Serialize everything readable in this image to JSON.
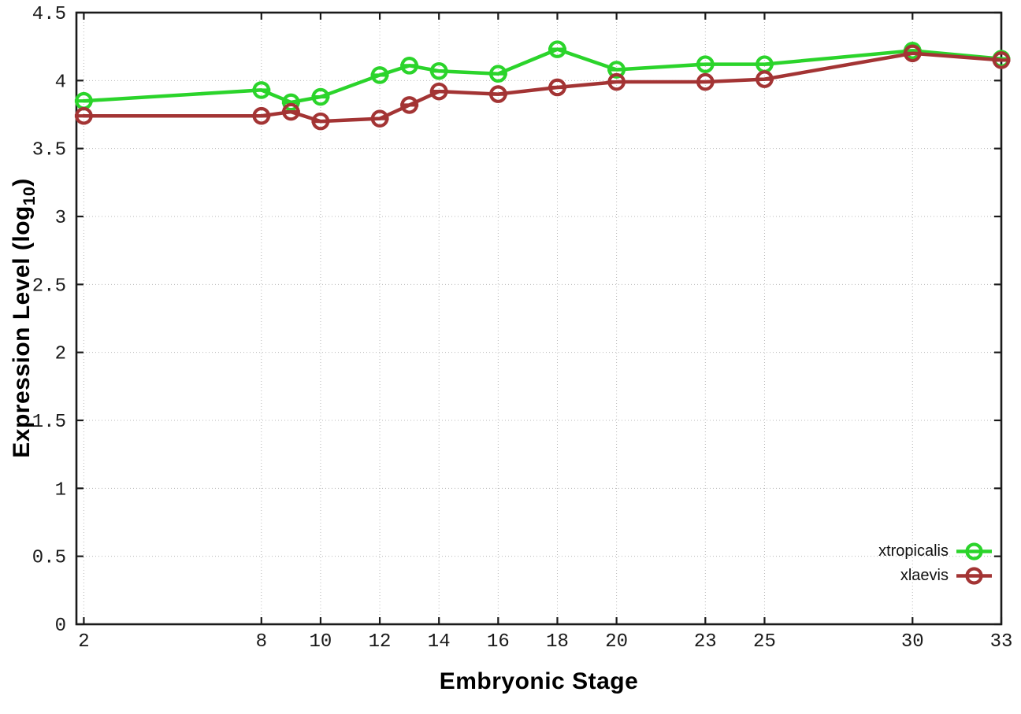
{
  "chart_data": {
    "type": "line",
    "title": "",
    "xlabel": "Embryonic Stage",
    "ylabel": "Expression Level (log10)",
    "ylabel_parts": {
      "main": "Expression Level (log",
      "sub": "10",
      "close": ")"
    },
    "x": [
      2,
      8,
      9,
      10,
      12,
      13,
      14,
      16,
      18,
      20,
      23,
      25,
      30,
      33
    ],
    "series": [
      {
        "name": "xtropicalis",
        "color": "#2bd42b",
        "values": [
          3.85,
          3.93,
          3.84,
          3.88,
          4.04,
          4.11,
          4.07,
          4.05,
          4.23,
          4.08,
          4.12,
          4.12,
          4.22,
          4.16
        ]
      },
      {
        "name": "xlaevis",
        "color": "#a33434",
        "values": [
          3.74,
          3.74,
          3.77,
          3.7,
          3.72,
          3.82,
          3.92,
          3.9,
          3.95,
          3.99,
          3.99,
          4.01,
          4.2,
          4.15
        ]
      }
    ],
    "xticks": [
      2,
      8,
      10,
      12,
      14,
      16,
      18,
      20,
      23,
      25,
      30,
      33
    ],
    "yticks": [
      0,
      0.5,
      1,
      1.5,
      2,
      2.5,
      3,
      3.5,
      4,
      4.5
    ],
    "xlim": [
      1.75,
      33
    ],
    "ylim": [
      0,
      4.5
    ],
    "grid": true,
    "marker": "open-circle-with-error-cap",
    "legend_position": "bottom-right",
    "colors": {
      "border": "#1a1a1a",
      "grid": "#b8b8b8",
      "tick_label": "#1a1a1a",
      "background": "#ffffff"
    }
  },
  "legend": {
    "entries": [
      {
        "label": "xtropicalis"
      },
      {
        "label": "xlaevis"
      }
    ]
  }
}
